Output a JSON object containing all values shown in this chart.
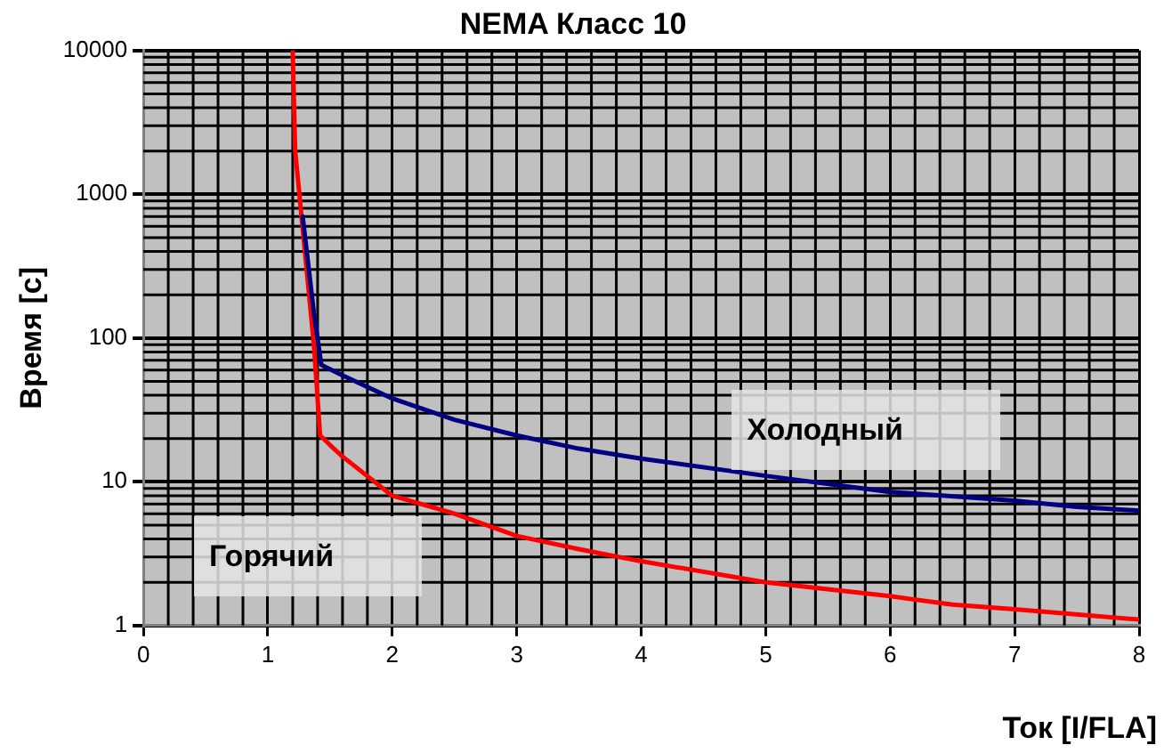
{
  "chart_data": {
    "type": "line",
    "title": "NEMA Класс 10",
    "xlabel": "Ток [I/FLA]",
    "ylabel": "Время [c]",
    "series": [
      {
        "name": "Холодный",
        "color": "#000080",
        "x": [
          1.28,
          1.37,
          1.43,
          1.6,
          2,
          2.5,
          3,
          3.5,
          4,
          5,
          6,
          7,
          7.5,
          8
        ],
        "values": [
          700,
          150,
          65,
          55,
          38,
          27,
          21,
          17,
          14.5,
          11,
          8.5,
          7.4,
          6.7,
          6.3
        ]
      },
      {
        "name": "Горячий",
        "color": "#ff0000",
        "x": [
          1.2,
          1.22,
          1.37,
          1.42,
          1.5,
          1.6,
          2,
          2.5,
          3,
          3.5,
          4,
          5,
          6,
          6.5,
          7,
          8
        ],
        "values": [
          10000,
          2000,
          90,
          21,
          18,
          15,
          8,
          6,
          4.2,
          3.4,
          2.8,
          2,
          1.6,
          1.4,
          1.3,
          1.1
        ]
      }
    ],
    "xlim": [
      0,
      8
    ],
    "xticks": [
      0,
      1,
      2,
      3,
      4,
      5,
      6,
      7,
      8
    ],
    "ylim": [
      1,
      10000
    ],
    "yticks": [
      1,
      10,
      100,
      1000,
      10000
    ],
    "log": "y",
    "grid": true,
    "legend": false,
    "marker": "none",
    "line_style": "solid"
  }
}
